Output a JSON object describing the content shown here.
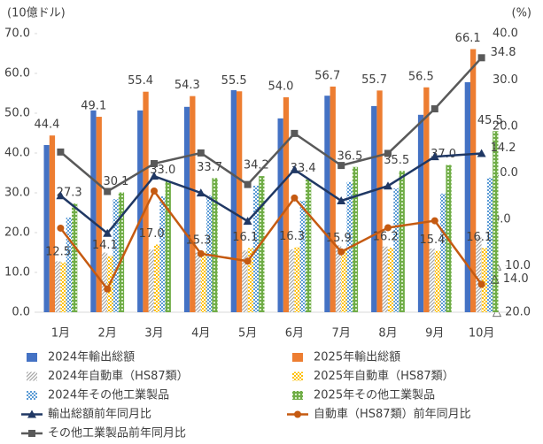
{
  "chart_data": {
    "type": "bar",
    "y_unit_label": "(10億ドル)",
    "y2_unit_label": "(%)",
    "categories": [
      "1月",
      "2月",
      "3月",
      "4月",
      "5月",
      "6月",
      "7月",
      "8月",
      "9月",
      "10月"
    ],
    "ylim": [
      0,
      70
    ],
    "yticks": [
      {
        "value": 0,
        "label": "0.0"
      },
      {
        "value": 10,
        "label": "10.0"
      },
      {
        "value": 20,
        "label": "20.0"
      },
      {
        "value": 30,
        "label": "30.0"
      },
      {
        "value": 40,
        "label": "40.0"
      },
      {
        "value": 50,
        "label": "50.0"
      },
      {
        "value": 60,
        "label": "60.0"
      },
      {
        "value": 70,
        "label": "70.0"
      }
    ],
    "y2lim": [
      -20,
      40
    ],
    "y2ticks": [
      {
        "value": -20,
        "label": "△ 20.0"
      },
      {
        "value": -10,
        "label": "△ 10.0"
      },
      {
        "value": 0,
        "label": "0.0"
      },
      {
        "value": 10,
        "label": "10.0"
      },
      {
        "value": 20,
        "label": "20.0"
      },
      {
        "value": 30,
        "label": "30.0"
      },
      {
        "value": 40,
        "label": "40.0"
      }
    ],
    "series": [
      {
        "name": "2024年輸出総額",
        "type": "bar",
        "color": "#4472c4",
        "pattern": "solid",
        "values": [
          42.0,
          50.7,
          50.7,
          51.6,
          55.8,
          48.7,
          54.4,
          51.8,
          49.6,
          57.8
        ]
      },
      {
        "name": "2025年輸出総額",
        "type": "bar",
        "color": "#ed7d31",
        "pattern": "solid",
        "values": [
          44.4,
          49.1,
          55.4,
          54.3,
          55.5,
          54.0,
          56.7,
          55.7,
          56.5,
          66.1
        ],
        "value_labels": [
          "44.4",
          "49.1",
          "55.4",
          "54.3",
          "55.5",
          "54.0",
          "56.7",
          "55.7",
          "56.5",
          "66.1"
        ]
      },
      {
        "name": "2024年自動車（HS87類）",
        "type": "bar",
        "color": "#a5a5a5",
        "pattern": "hatch",
        "values": [
          12.8,
          15.0,
          15.7,
          15.0,
          15.5,
          15.8,
          16.8,
          16.5,
          16.0,
          18.8
        ]
      },
      {
        "name": "2025年自動車（HS87類）",
        "type": "bar",
        "color": "#ffc000",
        "pattern": "dots",
        "values": [
          12.5,
          14.1,
          17.0,
          15.3,
          16.1,
          16.3,
          15.9,
          16.2,
          15.4,
          16.1
        ],
        "value_labels": [
          "12.5",
          "14.1",
          "17.0",
          "15.3",
          "16.1",
          "16.3",
          "15.9",
          "16.2",
          "15.4",
          "16.1"
        ]
      },
      {
        "name": "2024年その他工業製品",
        "type": "bar",
        "color": "#5b9bd5",
        "pattern": "dots",
        "values": [
          23.8,
          28.4,
          29.1,
          29.3,
          31.8,
          28.0,
          32.7,
          31.1,
          29.8,
          33.8
        ]
      },
      {
        "name": "2025年その他工業製品",
        "type": "bar",
        "color": "#70ad47",
        "pattern": "grid",
        "values": [
          27.3,
          30.1,
          33.0,
          33.7,
          34.2,
          33.4,
          36.5,
          35.5,
          37.0,
          45.5
        ],
        "value_labels": [
          "27.3",
          "30.1",
          "33.0",
          "33.7",
          "34.2",
          "33.4",
          "36.5",
          "35.5",
          "37.0",
          "45.5"
        ]
      },
      {
        "name": "輸出総額前年同月比",
        "type": "line",
        "axis": "y2",
        "color": "#203864",
        "marker": "triangle",
        "values": [
          5.1,
          -3.0,
          9.3,
          5.7,
          -0.4,
          10.7,
          4.0,
          7.2,
          13.5,
          14.2
        ],
        "value_labels": [
          null,
          null,
          null,
          null,
          null,
          null,
          null,
          null,
          null,
          "14.2"
        ]
      },
      {
        "name": "自動車（HS87類）前年同月比",
        "type": "line",
        "axis": "y2",
        "color": "#c55a11",
        "marker": "circle",
        "values": [
          -1.9,
          -15.0,
          6.1,
          -7.4,
          -9.0,
          4.6,
          -7.0,
          -1.8,
          -0.3,
          -14.0
        ],
        "value_labels": [
          null,
          null,
          null,
          null,
          null,
          null,
          null,
          null,
          null,
          "△ 14.0"
        ]
      },
      {
        "name": "その他工業製品前年同月比",
        "type": "line",
        "axis": "y2",
        "color": "#595959",
        "marker": "square",
        "values": [
          14.5,
          6.0,
          12.0,
          14.3,
          7.5,
          18.5,
          11.6,
          14.2,
          23.8,
          34.8
        ],
        "value_labels": [
          null,
          null,
          null,
          null,
          null,
          null,
          null,
          null,
          null,
          "34.8"
        ]
      }
    ]
  }
}
